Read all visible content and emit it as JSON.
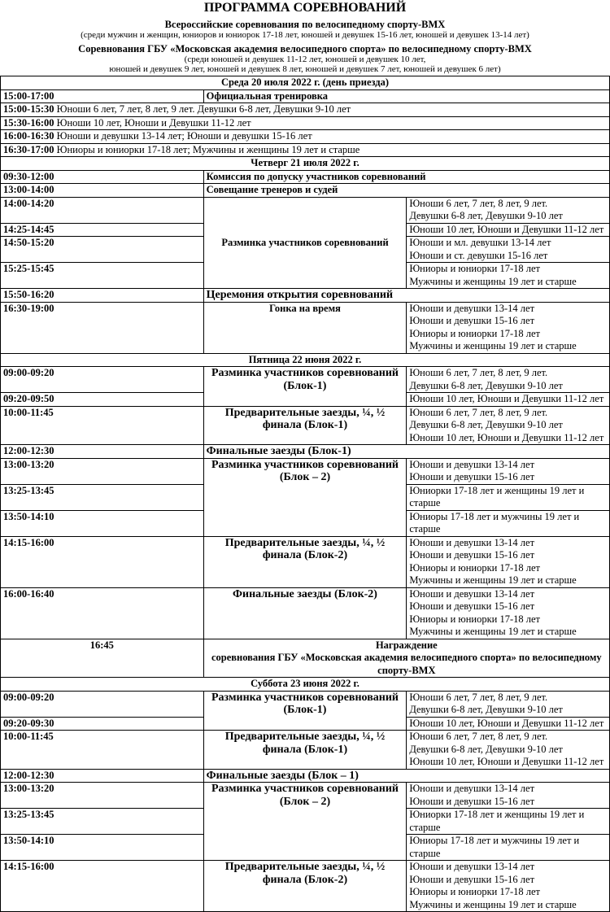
{
  "header": {
    "title": "ПРОГРАММА СОРЕВНОВАНИЙ",
    "subtitle1": "Всероссийские соревнования по велосипедному спорту-BMX",
    "subtitle1_note": "(среди мужчин и женщин, юниоров и юниорок 17-18 лет, юношей и девушек 15-16 лет, юношей и девушек 13-14 лет)",
    "subtitle2": "Соревнования ГБУ «Московская академия велосипедного спорта» по велосипедному спорту-BMX",
    "subtitle2_note1": "(среди юношей и девушек 11-12 лет, юношей и девушек 10 лет,",
    "subtitle2_note2": "юношей и девушек 9 лет, юношей и девушек 8 лет, юношей и девушек 7 лет, юношей и девушек 6 лет)"
  },
  "days": [
    {
      "title": "Среда 20 июля 2022 г. (день приезда)",
      "rows": [
        {
          "type": "split",
          "time": "15:00-17:00",
          "text": "Официальная тренировка"
        },
        {
          "type": "line",
          "time": "15:00-15:30",
          "text": "Юноши 6 лет, 7 лет, 8 лет, 9 лет. Девушки 6-8 лет, Девушки 9-10 лет"
        },
        {
          "type": "line",
          "time": "15:30-16:00",
          "text": "Юноши 10 лет, Юноши и Девушки 11-12 лет"
        },
        {
          "type": "line",
          "time": "16:00-16:30",
          "text": "Юноши и девушки 13-14 лет; Юноши и девушки 15-16 лет"
        },
        {
          "type": "line",
          "time": "16:30-17:00",
          "text": "Юниоры и юниорки 17-18 лет; Мужчины и женщины 19 лет и старше"
        }
      ]
    },
    {
      "title": "Четверг 21 июля 2022 г.",
      "rows": [
        {
          "type": "split",
          "time": "09:30-12:00",
          "text": "Комиссия по допуску участников соревнований"
        },
        {
          "type": "split",
          "time": "13:00-14:00",
          "text": "Совещание тренеров и судей"
        },
        {
          "type": "block",
          "activity": "Разминка участников соревнований",
          "slots": [
            {
              "time": "14:00-14:20",
              "groups": [
                "Юноши 6 лет, 7 лет, 8 лет, 9 лет.",
                "Девушки 6-8 лет, Девушки 9-10 лет"
              ]
            },
            {
              "time": "14:25-14:45",
              "groups": [
                "Юноши 10 лет, Юноши и Девушки 11-12 лет"
              ]
            },
            {
              "time": "14:50-15:20",
              "groups": [
                "Юноши и мл. девушки 13-14 лет",
                "Юноши и ст. девушки 15-16 лет"
              ]
            },
            {
              "time": "15:25-15:45",
              "groups": [
                "Юниоры и юниорки 17-18 лет",
                "Мужчины и женщины 19 лет и старше"
              ]
            }
          ]
        },
        {
          "type": "split",
          "time": "15:50-16:20",
          "text": "Церемония открытия соревнований",
          "big": true
        },
        {
          "type": "block",
          "activity": "Гонка на время",
          "slots": [
            {
              "time": "16:30-19:00",
              "groups": [
                "Юноши и девушки 13-14 лет",
                "Юноши и девушки 15-16 лет",
                "Юниоры и юниорки 17-18 лет",
                "Мужчины и женщины 19 лет и старше"
              ]
            }
          ]
        }
      ]
    },
    {
      "title": "Пятница 22 июня 2022 г.",
      "rows": [
        {
          "type": "block",
          "activity": "Разминка участников соревнований (Блок-1)",
          "big": true,
          "slots": [
            {
              "time": "09:00-09:20",
              "groups": [
                "Юноши 6 лет, 7 лет, 8 лет, 9 лет.",
                "Девушки 6-8 лет, Девушки 9-10 лет"
              ]
            },
            {
              "time": "09:20-09:50",
              "groups": [
                "Юноши 10 лет, Юноши и Девушки 11-12 лет"
              ]
            }
          ]
        },
        {
          "type": "block",
          "activity": "Предварительные заезды, ¼, ½ финала (Блок-1)",
          "big": true,
          "slots": [
            {
              "time": "10:00-11:45",
              "groups": [
                "Юноши 6 лет, 7 лет, 8 лет, 9 лет.",
                "Девушки 6-8 лет, Девушки 9-10 лет",
                "Юноши 10 лет, Юноши и Девушки 11-12 лет"
              ]
            }
          ]
        },
        {
          "type": "split",
          "time": "12:00-12:30",
          "text": "Финальные заезды (Блок-1)",
          "big": true
        },
        {
          "type": "block",
          "activity": "Разминка участников соревнований (Блок – 2)",
          "big": true,
          "slots": [
            {
              "time": "13:00-13:20",
              "groups": [
                "Юноши и девушки 13-14 лет",
                "Юноши и девушки 15-16 лет"
              ]
            },
            {
              "time": "13:25-13:45",
              "groups": [
                "Юниорки 17-18 лет и женщины 19 лет и старше"
              ]
            },
            {
              "time": "13:50-14:10",
              "groups": [
                "Юниоры 17-18 лет и мужчины 19 лет и старше"
              ]
            }
          ]
        },
        {
          "type": "block",
          "activity": "Предварительные заезды, ¼, ½ финала (Блок-2)",
          "big": true,
          "slots": [
            {
              "time": "14:15-16:00",
              "groups": [
                "Юноши и девушки 13-14 лет",
                "Юноши и девушки 15-16 лет",
                "Юниоры и юниорки 17-18 лет",
                "Мужчины и женщины 19 лет и старше"
              ]
            }
          ]
        },
        {
          "type": "block",
          "activity": "Финальные заезды (Блок-2)",
          "big": true,
          "slots": [
            {
              "time": "16:00-16:40",
              "groups": [
                "Юноши и девушки 13-14 лет",
                "Юноши и девушки 15-16 лет",
                "Юниоры и юниорки 17-18 лет",
                "Мужчины и женщины 19 лет и старше"
              ]
            }
          ]
        },
        {
          "type": "award",
          "time": "16:45",
          "line1": "Награждение",
          "line2": "соревнования ГБУ «Московская академия велосипедного спорта» по велосипедному спорту-BMX"
        }
      ]
    },
    {
      "title": "Суббота 23 июня 2022 г.",
      "rows": [
        {
          "type": "block",
          "activity": "Разминка участников соревнований (Блок-1)",
          "big": true,
          "slots": [
            {
              "time": "09:00-09:20",
              "groups": [
                "Юноши 6 лет, 7 лет, 8 лет, 9 лет.",
                "Девушки 6-8 лет, Девушки 9-10 лет"
              ]
            },
            {
              "time": "09:20-09:30",
              "groups": [
                "Юноши 10 лет, Юноши и Девушки 11-12 лет"
              ]
            }
          ]
        },
        {
          "type": "block",
          "activity": "Предварительные заезды, ¼, ½ финала (Блок-1)",
          "big": true,
          "slots": [
            {
              "time": "10:00-11:45",
              "groups": [
                "Юноши 6 лет, 7 лет, 8 лет, 9 лет.",
                "Девушки 6-8 лет, Девушки 9-10 лет",
                "Юноши 10 лет, Юноши и Девушки 11-12 лет"
              ]
            }
          ]
        },
        {
          "type": "split",
          "time": "12:00-12:30",
          "text": "Финальные заезды (Блок – 1)",
          "big": true
        },
        {
          "type": "block",
          "activity": "Разминка участников соревнований (Блок – 2)",
          "big": true,
          "slots": [
            {
              "time": "13:00-13:20",
              "groups": [
                "Юноши и девушки 13-14 лет",
                "Юноши и девушки 15-16 лет"
              ]
            },
            {
              "time": "13:25-13:45",
              "groups": [
                "Юниорки 17-18 лет и женщины 19 лет и старше"
              ]
            },
            {
              "time": "13:50-14:10",
              "groups": [
                "Юниоры 17-18 лет и мужчины 19 лет и старше"
              ]
            }
          ]
        },
        {
          "type": "block",
          "activity": "Предварительные заезды, ¼, ½ финала (Блок-2)",
          "big": true,
          "slots": [
            {
              "time": "14:15-16:00",
              "groups": [
                "Юноши и девушки 13-14 лет",
                "Юноши и девушки 15-16 лет",
                "Юниоры и юниорки 17-18 лет",
                "Мужчины и женщины 19 лет и старше"
              ]
            }
          ]
        }
      ]
    }
  ]
}
